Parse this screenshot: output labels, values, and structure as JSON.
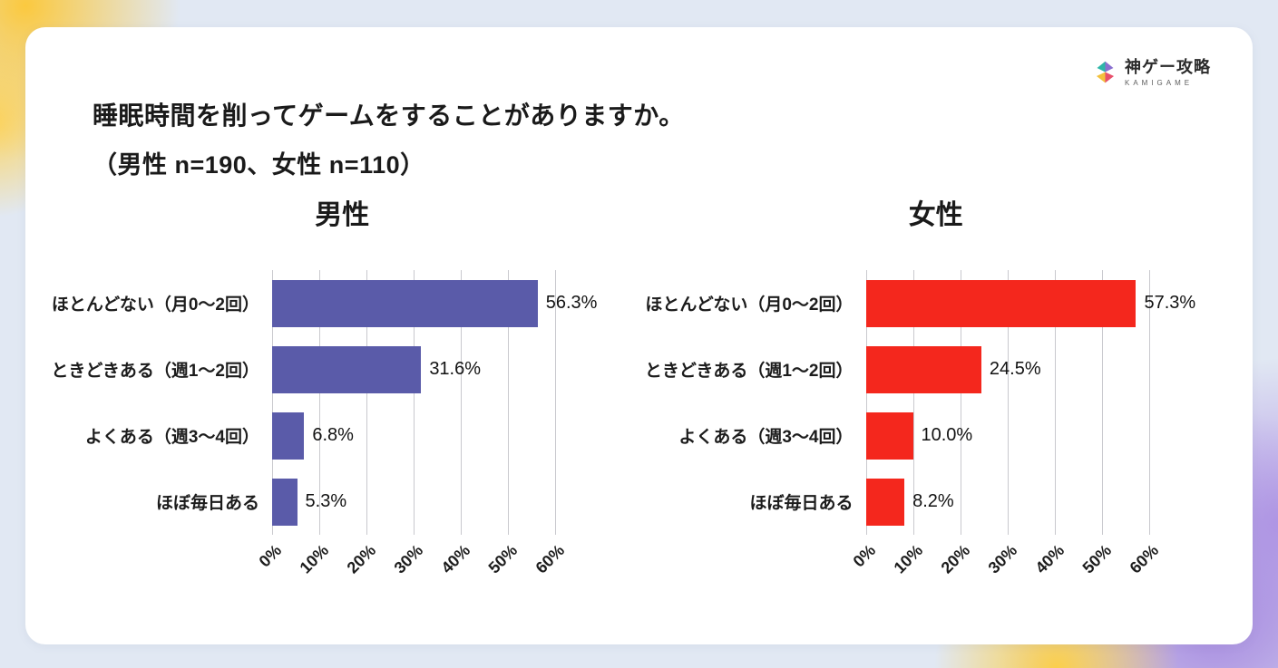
{
  "logo": {
    "brand": "神ゲー攻略",
    "brand_sub": "KAMIGAME"
  },
  "title": {
    "line1": "睡眠時間を削ってゲームをすることがありますか。",
    "line2": "（男性 n=190、女性 n=110）"
  },
  "chart_data": [
    {
      "type": "bar",
      "orientation": "horizontal",
      "title": "男性",
      "categories": [
        "ほとんどない（月0〜2回）",
        "ときどきある（週1〜2回）",
        "よくある（週3〜4回）",
        "ほぼ毎日ある"
      ],
      "values": [
        56.3,
        31.6,
        6.8,
        5.3
      ],
      "value_labels": [
        "56.3%",
        "31.6%",
        "6.8%",
        "5.3%"
      ],
      "xlim": [
        0,
        60
      ],
      "xticks": [
        "0%",
        "10%",
        "20%",
        "30%",
        "40%",
        "50%",
        "60%"
      ],
      "bar_color": "#5a5ba9",
      "grid": true,
      "legend": "none"
    },
    {
      "type": "bar",
      "orientation": "horizontal",
      "title": "女性",
      "categories": [
        "ほとんどない（月0〜2回）",
        "ときどきある（週1〜2回）",
        "よくある（週3〜4回）",
        "ほぼ毎日ある"
      ],
      "values": [
        57.3,
        24.5,
        10.0,
        8.2
      ],
      "value_labels": [
        "57.3%",
        "24.5%",
        "10.0%",
        "8.2%"
      ],
      "xlim": [
        0,
        60
      ],
      "xticks": [
        "0%",
        "10%",
        "20%",
        "30%",
        "40%",
        "50%",
        "60%"
      ],
      "bar_color": "#f4271d",
      "grid": true,
      "legend": "none"
    }
  ],
  "colors": {
    "male_bar": "#5a5ba9",
    "female_bar": "#f4271d",
    "card_background": "#ffffff"
  }
}
